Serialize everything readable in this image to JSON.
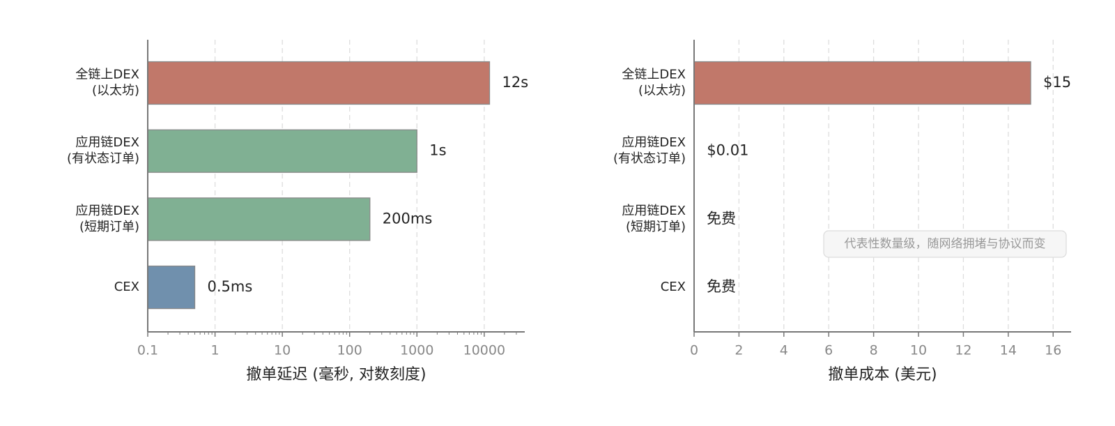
{
  "chart_data": [
    {
      "type": "bar",
      "orientation": "horizontal",
      "xscale": "log",
      "categories": [
        [
          "全链上DEX",
          "(以太坊)"
        ],
        [
          "应用链DEX",
          "(有状态订单)"
        ],
        [
          "应用链DEX",
          "(短期订单)"
        ],
        [
          "CEX"
        ]
      ],
      "values": [
        12000,
        1000,
        200,
        0.5
      ],
      "value_labels": [
        "12s",
        "1s",
        "200ms",
        "0.5ms"
      ],
      "colors": [
        "#c1786a",
        "#80b093",
        "#80b093",
        "#7090ad"
      ],
      "xlabel": "撤单延迟 (毫秒, 对数刻度)",
      "xlim": [
        0.1,
        40000
      ],
      "xticks": [
        0.1,
        1,
        10,
        100,
        1000,
        10000
      ],
      "grid": true
    },
    {
      "type": "bar",
      "orientation": "horizontal",
      "xscale": "linear",
      "categories": [
        [
          "全链上DEX",
          "(以太坊)"
        ],
        [
          "应用链DEX",
          "(有状态订单)"
        ],
        [
          "应用链DEX",
          "(短期订单)"
        ],
        [
          "CEX"
        ]
      ],
      "values": [
        15,
        0.01,
        0,
        0
      ],
      "value_labels": [
        "$15",
        "$0.01",
        "免费",
        "免费"
      ],
      "colors": [
        "#c1786a",
        "#80b093",
        "#80b093",
        "#7090ad"
      ],
      "xlabel": "撤单成本 (美元)",
      "xlim": [
        0,
        16.8
      ],
      "xticks": [
        0,
        2,
        4,
        6,
        8,
        10,
        12,
        14,
        16
      ],
      "grid": true,
      "annotation": "代表性数量级，随网络拥堵与协议而变"
    }
  ]
}
